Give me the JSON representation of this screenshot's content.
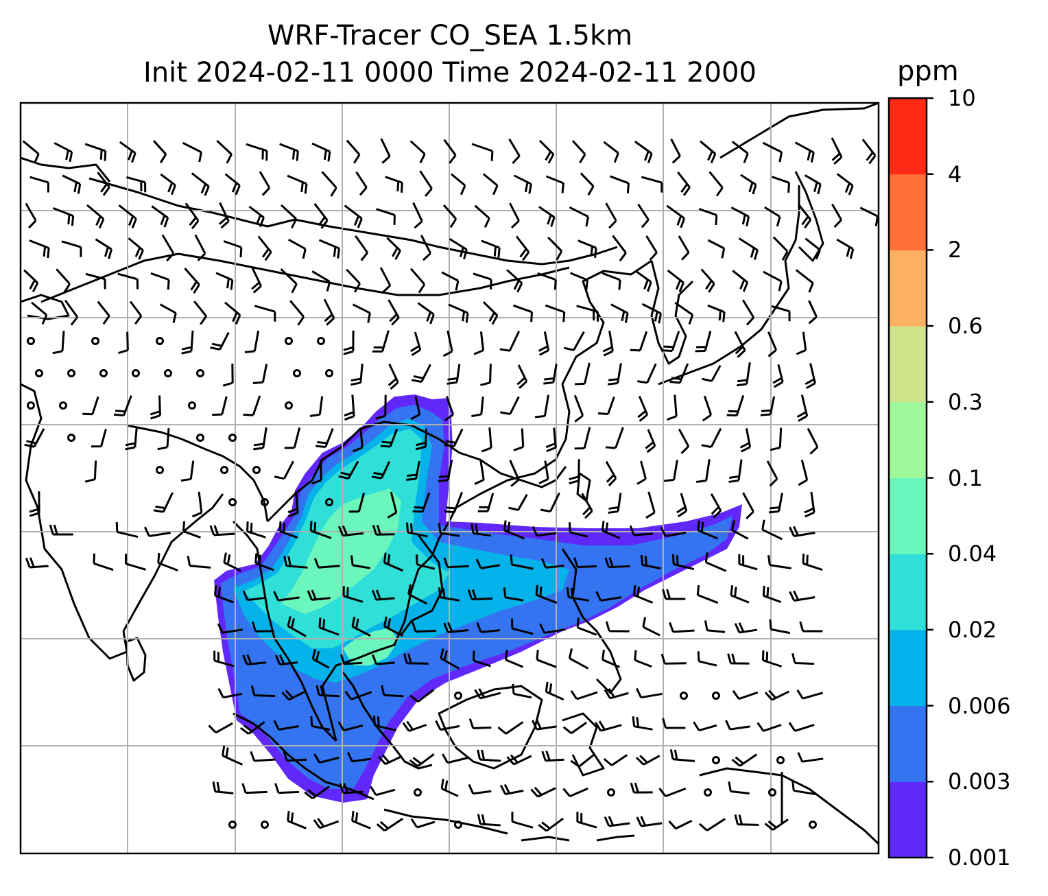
{
  "title": {
    "line1": "WRF-Tracer CO_SEA 1.5km",
    "line2": "Init 2024-02-11 0000 Time 2024-02-11 2000"
  },
  "colorbar": {
    "unit": "ppm",
    "ticks": [
      "0.001",
      "0.003",
      "0.006",
      "0.02",
      "0.04",
      "0.1",
      "0.3",
      "0.6",
      "2",
      "4",
      "10"
    ],
    "colors": [
      "#6128fa",
      "#3474f0",
      "#05b2e9",
      "#2fdfd8",
      "#6bf6bc",
      "#9ef99a",
      "#cfe38a",
      "#fdaf62",
      "#fe7038",
      "#fe2a16"
    ]
  },
  "map": {
    "gridlines": true,
    "grid_color": "#b0b0b0",
    "coastline_color": "#000000",
    "wind_barb_color": "#000000",
    "calm_marker": "circle"
  }
}
